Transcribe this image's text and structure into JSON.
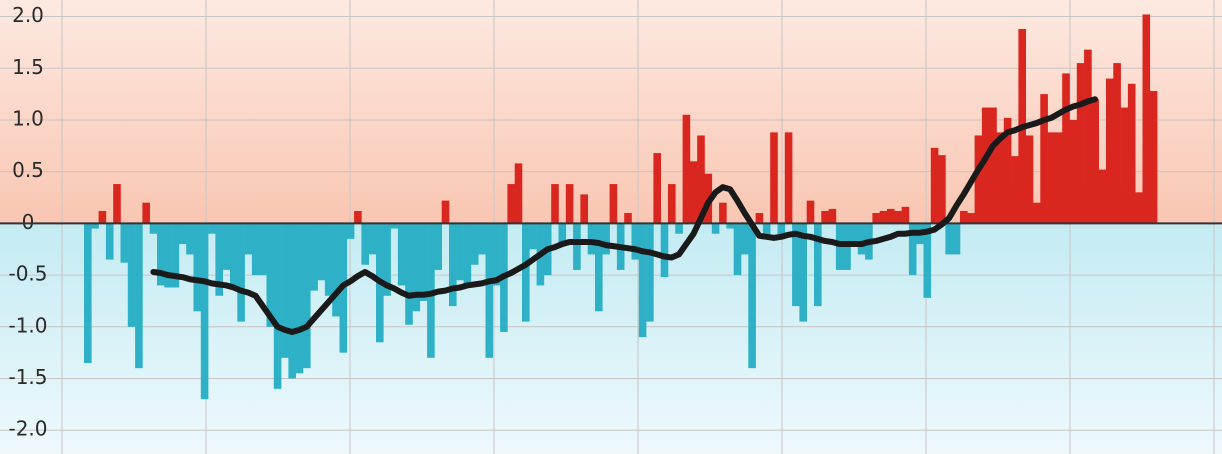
{
  "chart_data": {
    "type": "bar",
    "ylim": [
      -2.23,
      2.16
    ],
    "yticks": [
      {
        "value": 2,
        "label": "2.0"
      },
      1.5,
      {
        "value": 1,
        "label": "1.0"
      },
      0.5,
      0,
      -0.5,
      {
        "value": -1,
        "label": "-1.0"
      },
      -1.5,
      {
        "value": -2,
        "label": "-2.0"
      }
    ],
    "grid": true,
    "positive_color": "#d9261f",
    "negative_color": "#2eb1c6",
    "line_color": "#1a1a1a",
    "categories": [
      null,
      null,
      null,
      null,
      null,
      null,
      null,
      null,
      null,
      null,
      null,
      null,
      null,
      null,
      null,
      null,
      null,
      null,
      null,
      null,
      null,
      null,
      null,
      null,
      null,
      null,
      null,
      null,
      null,
      null,
      null,
      null,
      null,
      null,
      null,
      null,
      null,
      null,
      null,
      null,
      null,
      null,
      null,
      null,
      null,
      null,
      null,
      null,
      null,
      null,
      null,
      null,
      null,
      null,
      null,
      null,
      null,
      null,
      null,
      null,
      null,
      null,
      null,
      null,
      null,
      null,
      null,
      null,
      null,
      null,
      null,
      null,
      null,
      null,
      null,
      null,
      null,
      null,
      null,
      null,
      null,
      null,
      null,
      null,
      null,
      null,
      null,
      null,
      null,
      null,
      null,
      null,
      null,
      null,
      null,
      null,
      null,
      null,
      null,
      null,
      null,
      null,
      null,
      null,
      null,
      null,
      null,
      null,
      null,
      null,
      null,
      null,
      null,
      null,
      null,
      null,
      null,
      null,
      null,
      null,
      null,
      null,
      null,
      null,
      null,
      null,
      null,
      null,
      null,
      null,
      null,
      null,
      null,
      null,
      null,
      null,
      null,
      null,
      null,
      null,
      null,
      null,
      null,
      null,
      null,
      null,
      null
    ],
    "values": [
      -1.35,
      -0.05,
      0.12,
      -0.35,
      0.38,
      -0.38,
      -1.0,
      -1.4,
      0.2,
      -0.1,
      -0.6,
      -0.62,
      -0.62,
      -0.2,
      -0.3,
      -0.85,
      -1.7,
      -0.1,
      -0.7,
      -0.45,
      -0.6,
      -0.95,
      -0.3,
      -0.5,
      -0.5,
      -1.0,
      -1.6,
      -1.3,
      -1.5,
      -1.45,
      -1.4,
      -0.65,
      -0.55,
      -0.7,
      -0.9,
      -1.25,
      -0.15,
      0.12,
      -0.4,
      -0.3,
      -1.15,
      -0.7,
      -0.05,
      -0.6,
      -0.98,
      -0.85,
      -0.75,
      -1.3,
      -0.45,
      0.22,
      -0.8,
      -0.55,
      -0.6,
      -0.4,
      -0.3,
      -1.3,
      -0.6,
      -1.05,
      0.38,
      0.58,
      -0.95,
      -0.25,
      -0.6,
      -0.5,
      0.38,
      -0.2,
      0.38,
      -0.45,
      0.28,
      -0.3,
      -0.85,
      -0.3,
      0.38,
      -0.45,
      0.1,
      -0.35,
      -1.1,
      -0.95,
      0.68,
      -0.52,
      0.38,
      -0.1,
      1.05,
      0.6,
      0.85,
      0.48,
      -0.1,
      0.2,
      -0.05,
      -0.5,
      -0.3,
      -1.4,
      0.1,
      -0.15,
      0.88,
      -0.15,
      0.88,
      -0.8,
      -0.95,
      0.22,
      -0.8,
      0.12,
      0.14,
      -0.45,
      -0.45,
      -0.2,
      -0.3,
      -0.35,
      0.1,
      0.12,
      0.14,
      0.12,
      0.16,
      -0.5,
      -0.2,
      -0.72,
      0.73,
      0.66,
      -0.3,
      -0.3,
      0.12,
      0.1,
      0.85,
      1.12,
      1.12,
      0.88,
      1.02,
      0.65,
      1.88,
      0.85,
      0.2,
      1.25,
      0.88,
      0.88,
      1.45,
      1.0,
      1.55,
      1.68,
      1.2,
      0.52,
      1.4,
      1.55,
      1.12,
      1.35,
      0.3,
      2.02,
      1.28
    ],
    "line_values": [
      null,
      null,
      null,
      null,
      null,
      null,
      null,
      null,
      null,
      -0.47,
      -0.48,
      -0.5,
      -0.51,
      -0.52,
      -0.54,
      -0.55,
      -0.56,
      -0.58,
      -0.59,
      -0.6,
      -0.62,
      -0.65,
      -0.67,
      -0.7,
      -0.8,
      -0.9,
      -1.0,
      -1.03,
      -1.05,
      -1.03,
      -1.0,
      -0.92,
      -0.84,
      -0.76,
      -0.68,
      -0.6,
      -0.56,
      -0.51,
      -0.47,
      -0.51,
      -0.56,
      -0.6,
      -0.63,
      -0.67,
      -0.7,
      -0.69,
      -0.69,
      -0.68,
      -0.66,
      -0.65,
      -0.63,
      -0.62,
      -0.6,
      -0.59,
      -0.58,
      -0.56,
      -0.55,
      -0.51,
      -0.48,
      -0.44,
      -0.4,
      -0.35,
      -0.3,
      -0.25,
      -0.23,
      -0.2,
      -0.18,
      -0.18,
      -0.18,
      -0.18,
      -0.19,
      -0.21,
      -0.22,
      -0.23,
      -0.24,
      -0.25,
      -0.27,
      -0.28,
      -0.3,
      -0.32,
      -0.33,
      -0.3,
      -0.2,
      -0.1,
      0.05,
      0.2,
      0.3,
      0.35,
      0.33,
      0.22,
      0.1,
      -0.01,
      -0.12,
      -0.13,
      -0.14,
      -0.13,
      -0.11,
      -0.1,
      -0.12,
      -0.13,
      -0.15,
      -0.17,
      -0.18,
      -0.2,
      -0.2,
      -0.2,
      -0.2,
      -0.18,
      -0.17,
      -0.15,
      -0.13,
      -0.1,
      -0.1,
      -0.09,
      -0.09,
      -0.08,
      -0.06,
      -0.01,
      0.05,
      0.17,
      0.28,
      0.4,
      0.52,
      0.63,
      0.75,
      0.82,
      0.88,
      0.9,
      0.93,
      0.95,
      0.97,
      1.0,
      1.02,
      1.06,
      1.1,
      1.13,
      1.15,
      1.18,
      1.2,
      null,
      null,
      null,
      null,
      null,
      null,
      null,
      null
    ]
  }
}
